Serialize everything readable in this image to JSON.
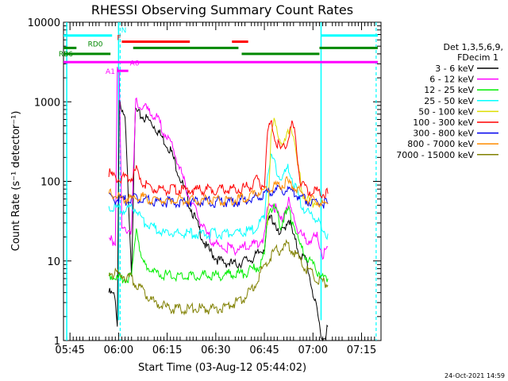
{
  "chart_data": {
    "type": "line",
    "title": "RHESSI Observing Summary Count Rates",
    "xlabel": "Start Time (03-Aug-12 05:44:02)",
    "ylabel": "Count Rate (s⁻¹ detector⁻¹)",
    "y_scale": "log",
    "ylim": [
      1,
      10000
    ],
    "xlim_minutes": [
      -1,
      97
    ],
    "x_ticks": [
      {
        "min": 1,
        "label": "05:45"
      },
      {
        "min": 16,
        "label": "06:00"
      },
      {
        "min": 31,
        "label": "06:15"
      },
      {
        "min": 46,
        "label": "06:30"
      },
      {
        "min": 61,
        "label": "06:45"
      },
      {
        "min": 76,
        "label": "07:00"
      },
      {
        "min": 91,
        "label": "07:15"
      }
    ],
    "y_ticks": [
      {
        "v": 1,
        "label": "1"
      },
      {
        "v": 10,
        "label": "10"
      },
      {
        "v": 100,
        "label": "100"
      },
      {
        "v": 1000,
        "label": "1000"
      },
      {
        "v": 10000,
        "label": "10000"
      }
    ],
    "legend": {
      "header": [
        "Det 1,3,5,6,9,",
        "FDecim 1"
      ],
      "placement": "right"
    },
    "series": [
      {
        "name": "3 - 6 keV",
        "color": "#000000",
        "points": [
          [
            13,
            4
          ],
          [
            15,
            3.5
          ],
          [
            15.6,
            1.5
          ],
          [
            16.2,
            1200
          ],
          [
            17,
            700
          ],
          [
            18,
            600
          ],
          [
            20,
            7.5
          ],
          [
            21.2,
            800
          ],
          [
            22,
            700
          ],
          [
            25,
            600
          ],
          [
            27,
            500
          ],
          [
            32,
            250
          ],
          [
            38,
            50
          ],
          [
            43,
            15
          ],
          [
            47,
            10
          ],
          [
            52,
            9
          ],
          [
            55,
            10
          ],
          [
            58,
            11
          ],
          [
            61,
            15
          ],
          [
            62,
            30
          ],
          [
            63,
            35
          ],
          [
            64.5,
            30
          ],
          [
            65.5,
            20
          ],
          [
            67,
            25
          ],
          [
            68.5,
            35
          ],
          [
            70,
            20
          ],
          [
            72,
            12
          ],
          [
            74,
            10
          ],
          [
            77.5,
            2
          ],
          [
            79,
            1
          ],
          [
            80.6,
            1.5
          ]
        ]
      },
      {
        "name": "6 - 12 keV",
        "color": "#ff00ff",
        "points": [
          [
            13,
            18
          ],
          [
            15,
            18
          ],
          [
            15.6,
            3000
          ],
          [
            16.2,
            2500
          ],
          [
            17,
            25
          ],
          [
            20,
            25
          ],
          [
            21.3,
            1000
          ],
          [
            22,
            900
          ],
          [
            25,
            800
          ],
          [
            28,
            600
          ],
          [
            33,
            250
          ],
          [
            38,
            60
          ],
          [
            43,
            22
          ],
          [
            47,
            15
          ],
          [
            52,
            14
          ],
          [
            55,
            15
          ],
          [
            58,
            16
          ],
          [
            61,
            20
          ],
          [
            62,
            45
          ],
          [
            63,
            55
          ],
          [
            64.5,
            45
          ],
          [
            66,
            32
          ],
          [
            67,
            40
          ],
          [
            68.5,
            55
          ],
          [
            70,
            35
          ],
          [
            72,
            22
          ],
          [
            74,
            18
          ],
          [
            77.5,
            20
          ],
          [
            79,
            12
          ],
          [
            80.6,
            15
          ]
        ]
      },
      {
        "name": "12 - 25 keV",
        "color": "#00ee00",
        "points": [
          [
            13,
            7
          ],
          [
            15,
            6
          ],
          [
            17,
            6
          ],
          [
            20,
            6
          ],
          [
            21.5,
            30
          ],
          [
            23,
            10
          ],
          [
            27,
            7
          ],
          [
            32,
            6.5
          ],
          [
            40,
            6.5
          ],
          [
            47,
            6.5
          ],
          [
            52,
            7
          ],
          [
            55,
            7
          ],
          [
            58,
            8
          ],
          [
            60,
            9
          ],
          [
            61,
            12
          ],
          [
            62,
            40
          ],
          [
            63,
            48
          ],
          [
            64.5,
            45
          ],
          [
            66,
            28
          ],
          [
            67,
            35
          ],
          [
            68.5,
            42
          ],
          [
            70,
            30
          ],
          [
            72,
            15
          ],
          [
            74,
            11
          ],
          [
            77.5,
            7.5
          ],
          [
            79,
            6
          ],
          [
            80.6,
            6
          ]
        ]
      },
      {
        "name": "25 - 50 keV",
        "color": "#00ffff",
        "points": [
          [
            13,
            50
          ],
          [
            15,
            45
          ],
          [
            17,
            45
          ],
          [
            20,
            45
          ],
          [
            21.5,
            45
          ],
          [
            24,
            30
          ],
          [
            30,
            22
          ],
          [
            40,
            22
          ],
          [
            48,
            22
          ],
          [
            55,
            23
          ],
          [
            58,
            25
          ],
          [
            61,
            35
          ],
          [
            62,
            120
          ],
          [
            63,
            200
          ],
          [
            64.5,
            150
          ],
          [
            66,
            110
          ],
          [
            67,
            120
          ],
          [
            68.5,
            150
          ],
          [
            70,
            100
          ],
          [
            72,
            55
          ],
          [
            74,
            40
          ],
          [
            77.5,
            35
          ],
          [
            79,
            22
          ],
          [
            80.6,
            22
          ]
        ]
      },
      {
        "name": "50 - 100 keV",
        "color": "#dddd00",
        "points": [
          [
            62,
            30
          ],
          [
            63,
            350
          ],
          [
            64,
            600
          ],
          [
            65.5,
            350
          ],
          [
            67,
            280
          ],
          [
            69,
            500
          ],
          [
            70,
            420
          ],
          [
            71,
            180
          ],
          [
            73,
            70
          ],
          [
            75,
            55
          ],
          [
            77.5,
            55
          ]
        ]
      },
      {
        "name": "100 - 300 keV",
        "color": "#ff0000",
        "points": [
          [
            13,
            130
          ],
          [
            15,
            110
          ],
          [
            17,
            110
          ],
          [
            20,
            110
          ],
          [
            21.5,
            140
          ],
          [
            24,
            90
          ],
          [
            28,
            80
          ],
          [
            35,
            78
          ],
          [
            45,
            78
          ],
          [
            53,
            80
          ],
          [
            57,
            88
          ],
          [
            58.5,
            105
          ],
          [
            60,
            88
          ],
          [
            61,
            95
          ],
          [
            62,
            400
          ],
          [
            63,
            550
          ],
          [
            64.5,
            330
          ],
          [
            66,
            250
          ],
          [
            68,
            310
          ],
          [
            69.5,
            520
          ],
          [
            70.5,
            400
          ],
          [
            72,
            100
          ],
          [
            74,
            75
          ],
          [
            77.5,
            75
          ],
          [
            79,
            70
          ],
          [
            80.6,
            70
          ]
        ]
      },
      {
        "name": "300 - 800 keV",
        "color": "#0000ee",
        "points": [
          [
            13,
            65
          ],
          [
            15,
            60
          ],
          [
            17,
            58
          ],
          [
            20,
            58
          ],
          [
            21.5,
            62
          ],
          [
            24,
            58
          ],
          [
            30,
            55
          ],
          [
            40,
            55
          ],
          [
            50,
            55
          ],
          [
            56,
            58
          ],
          [
            58,
            62
          ],
          [
            61,
            70
          ],
          [
            65,
            78
          ],
          [
            68,
            78
          ],
          [
            71,
            68
          ],
          [
            74,
            58
          ],
          [
            77.5,
            55
          ],
          [
            80.6,
            52
          ]
        ]
      },
      {
        "name": "800 - 7000 keV",
        "color": "#ff8c00",
        "points": [
          [
            13,
            70
          ],
          [
            15,
            65
          ],
          [
            17,
            62
          ],
          [
            20,
            60
          ],
          [
            21.5,
            65
          ],
          [
            24,
            62
          ],
          [
            30,
            58
          ],
          [
            40,
            58
          ],
          [
            50,
            58
          ],
          [
            56,
            62
          ],
          [
            58,
            70
          ],
          [
            61,
            78
          ],
          [
            65,
            88
          ],
          [
            68,
            98
          ],
          [
            71,
            80
          ],
          [
            74,
            62
          ],
          [
            77.5,
            55
          ],
          [
            80.6,
            52
          ]
        ]
      },
      {
        "name": "7000 - 15000 keV",
        "color": "#808000",
        "points": [
          [
            13,
            7
          ],
          [
            15,
            7
          ],
          [
            17,
            6.5
          ],
          [
            20,
            6
          ],
          [
            21.5,
            5
          ],
          [
            24,
            4
          ],
          [
            27,
            3
          ],
          [
            32,
            2.5
          ],
          [
            40,
            2.5
          ],
          [
            47,
            2.5
          ],
          [
            52,
            3
          ],
          [
            55,
            3.5
          ],
          [
            58,
            5
          ],
          [
            61,
            9
          ],
          [
            64,
            13
          ],
          [
            66,
            14
          ],
          [
            68,
            16
          ],
          [
            70,
            13
          ],
          [
            72,
            10
          ],
          [
            74,
            8
          ],
          [
            77.5,
            6
          ],
          [
            80.6,
            5
          ]
        ]
      }
    ],
    "overlay": {
      "segments": [
        {
          "label": "N",
          "color": "#00ffff",
          "y": 6800,
          "spans": [
            [
              -1,
              14
            ],
            [
              78.5,
              96
            ]
          ]
        },
        {
          "label": "F",
          "color": "#ff0000",
          "y": 5700,
          "spans": [
            [
              17,
              38
            ],
            [
              51,
              56
            ]
          ]
        },
        {
          "label": "RD0",
          "color": "#008800",
          "y": 4750,
          "spans": [
            [
              -1,
              3
            ],
            [
              20.5,
              53
            ],
            [
              78,
              96
            ]
          ]
        },
        {
          "label": "RB6",
          "color": "#008800",
          "y": 4000,
          "spans": [
            [
              -1,
              13.5
            ],
            [
              54,
              78
            ]
          ]
        },
        {
          "label": "A0",
          "color": "#ff00ff",
          "y": 3150,
          "spans": [
            [
              -1,
              96
            ]
          ]
        },
        {
          "label": "A1",
          "color": "#ff00ff",
          "y": 2450,
          "spans": [
            [
              15.5,
              19
            ]
          ]
        }
      ],
      "vlines_solid": [
        {
          "min": 16,
          "color": "#00ffff"
        },
        {
          "min": 78.5,
          "color": "#00ffff"
        }
      ],
      "vlines_dashed": [
        {
          "min": 16.5,
          "color": "#00ffff"
        },
        {
          "min": 95.5,
          "color": "#00ffff"
        }
      ],
      "edge_line": {
        "min": 0,
        "color": "#00ffff"
      }
    },
    "footer_date": "24-Oct-2021 14:59"
  }
}
